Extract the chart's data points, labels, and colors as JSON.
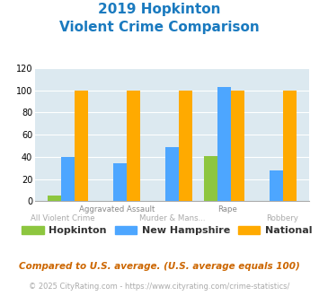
{
  "title_line1": "2019 Hopkinton",
  "title_line2": "Violent Crime Comparison",
  "categories": [
    "All Violent Crime",
    "Aggravated Assault",
    "Murder & Mans...",
    "Rape",
    "Robbery"
  ],
  "x_labels_top": [
    "",
    "Aggravated Assault",
    "",
    "Rape",
    ""
  ],
  "x_labels_bot": [
    "All Violent Crime",
    "",
    "Murder & Mans...",
    "",
    "Robbery"
  ],
  "hopkinton": [
    5,
    0,
    0,
    41,
    0
  ],
  "new_hampshire": [
    40,
    34,
    49,
    103,
    28
  ],
  "national": [
    100,
    100,
    100,
    100,
    100
  ],
  "colors": {
    "hopkinton": "#8dc63f",
    "new_hampshire": "#4da6ff",
    "national": "#ffaa00"
  },
  "ylim": [
    0,
    120
  ],
  "yticks": [
    0,
    20,
    40,
    60,
    80,
    100,
    120
  ],
  "title_color": "#1a7abf",
  "bg_color": "#dce9f0",
  "legend_labels": [
    "Hopkinton",
    "New Hampshire",
    "National"
  ],
  "footer1": "Compared to U.S. average. (U.S. average equals 100)",
  "footer2": "© 2025 CityRating.com - https://www.cityrating.com/crime-statistics/",
  "footer1_color": "#cc6600",
  "footer2_color": "#aaaaaa",
  "legend_text_color": "#333333"
}
